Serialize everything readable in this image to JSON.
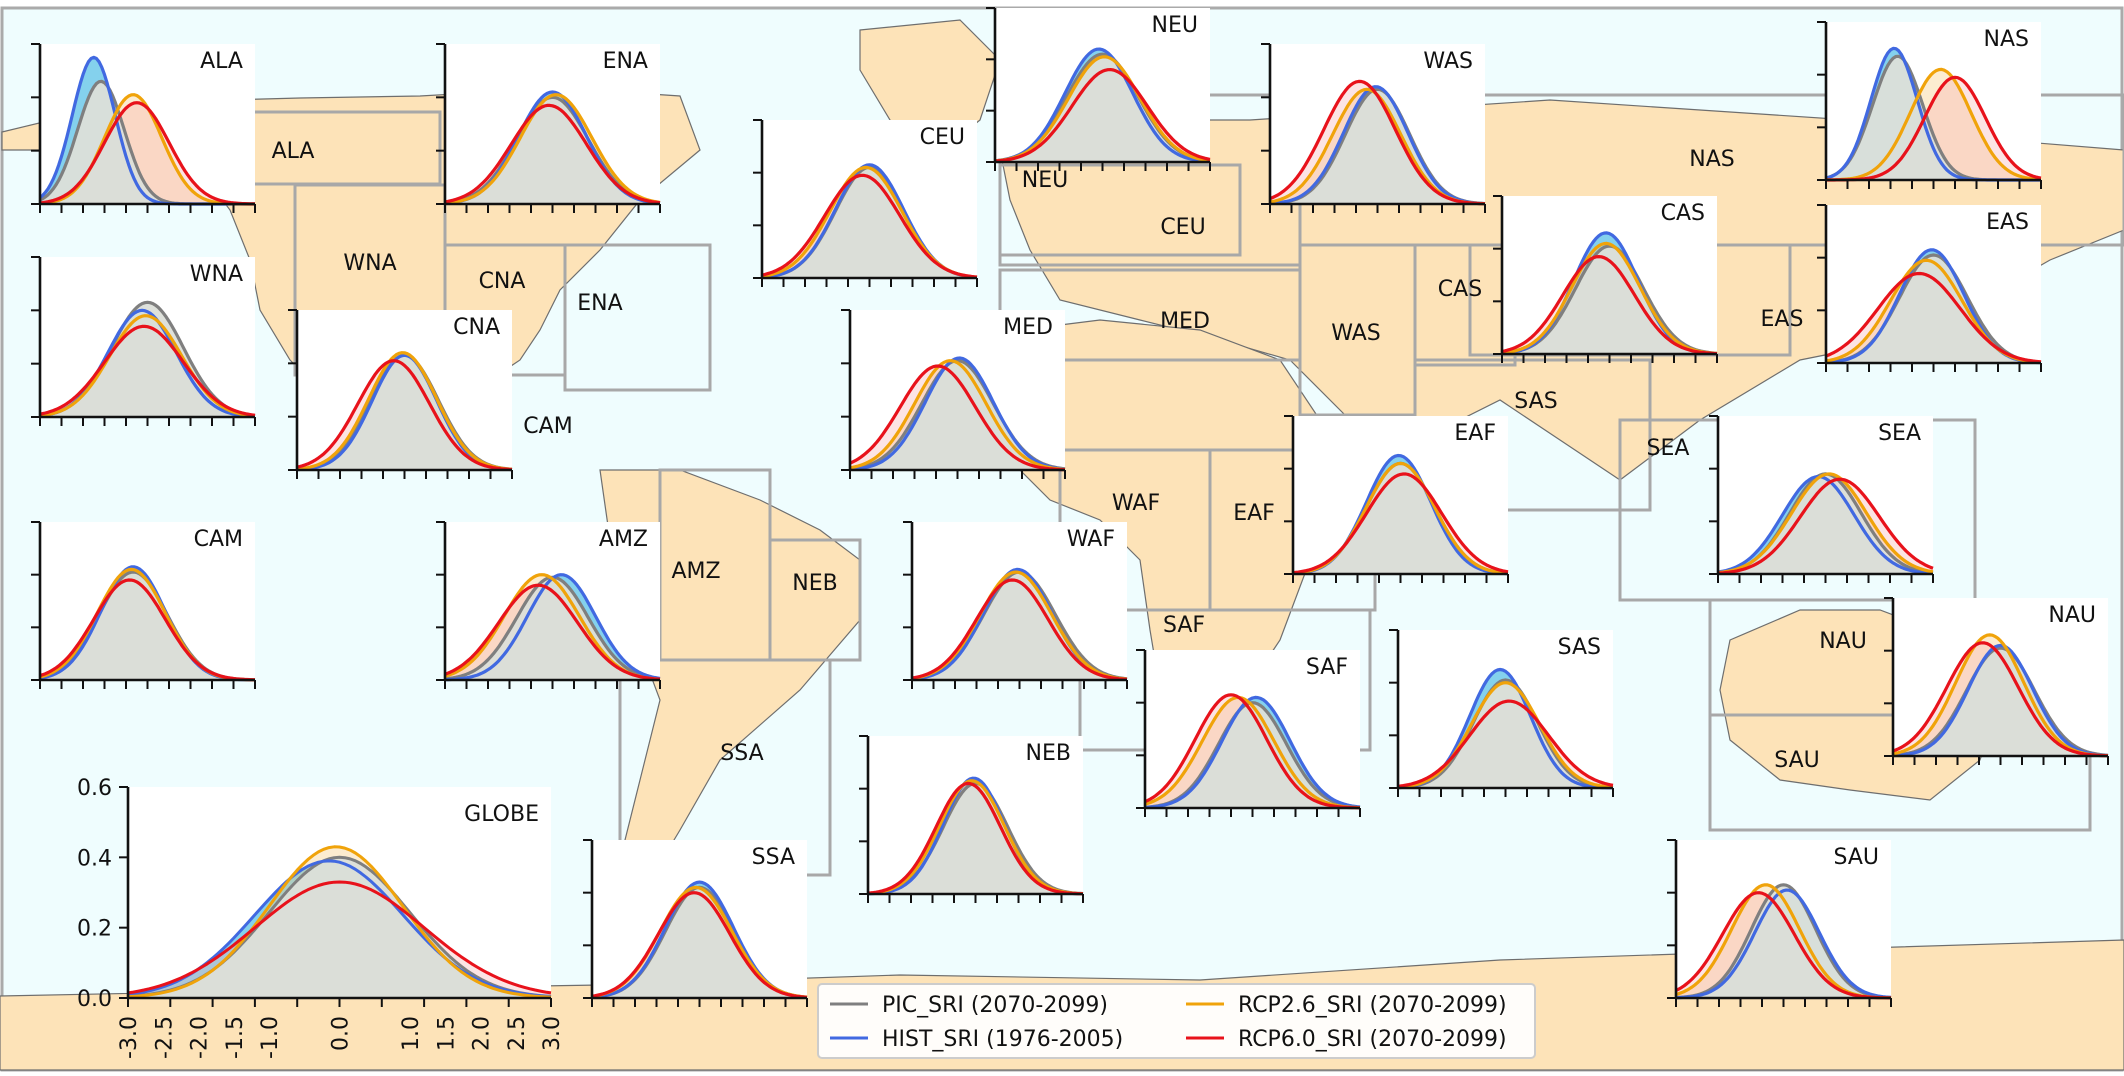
{
  "colors": {
    "ocean": "#effdfe",
    "land": "#fde3b8",
    "coast": "#6e6e6e",
    "region_border": "#a8a8a8",
    "pic": "#7f7f7f",
    "hist": "#4169e1",
    "rcp26": "#f0a30a",
    "rcp60": "#e8121b",
    "fill_grey": "#dcdfd9",
    "fill_blue": "#5bc2e7",
    "fill_orange": "#f7c977",
    "fill_red": "#f5b3b3"
  },
  "map_labels": [
    "ALA",
    "WNA",
    "CNA",
    "ENA",
    "CAM",
    "AMZ",
    "NEB",
    "SSA",
    "NEU",
    "CEU",
    "MED",
    "WAF",
    "EAF",
    "SAF",
    "WAS",
    "CAS",
    "NAS",
    "EAS",
    "SAS",
    "SEA",
    "NAU",
    "SAU"
  ],
  "legend": [
    {
      "key": "pic",
      "label": "PIC_SRI (2070-2099)"
    },
    {
      "key": "rcp26",
      "label": "RCP2.6_SRI (2070-2099)"
    },
    {
      "key": "hist",
      "label": "HIST_SRI (1976-2005)"
    },
    {
      "key": "rcp60",
      "label": "RCP6.0_SRI (2070-2099)"
    }
  ],
  "chart_data": {
    "type": "area",
    "description_units": "probability density of SRI",
    "x_range": [
      -3.0,
      3.0
    ],
    "y_range": [
      0.0,
      0.6
    ],
    "globe_axes": {
      "xticks": [
        "-3.0",
        "-2.5",
        "-2.0",
        "-1.5",
        "-1.0",
        "0.0",
        "1.0",
        "1.5",
        "2.0",
        "2.5",
        "3.0"
      ],
      "yticks": [
        "0.0",
        "0.2",
        "0.4",
        "0.6"
      ]
    },
    "series_names": {
      "pic": "PIC_SRI (2070-2099)",
      "hist": "HIST_SRI (1976-2005)",
      "rcp26": "RCP2.6_SRI (2070-2099)",
      "rcp60": "RCP6.0_SRI (2070-2099)"
    },
    "panels": [
      {
        "name": "ALA",
        "series": {
          "pic": {
            "mu": -1.3,
            "sd": 0.65,
            "peak": 0.46
          },
          "hist": {
            "mu": -1.5,
            "sd": 0.6,
            "peak": 0.55
          },
          "rcp26": {
            "mu": -0.4,
            "sd": 0.8,
            "peak": 0.41
          },
          "rcp60": {
            "mu": -0.3,
            "sd": 0.9,
            "peak": 0.38
          }
        }
      },
      {
        "name": "ENA",
        "series": {
          "pic": {
            "mu": 0,
            "sd": 1,
            "peak": 0.4
          },
          "hist": {
            "mu": 0,
            "sd": 0.95,
            "peak": 0.42
          },
          "rcp26": {
            "mu": 0.1,
            "sd": 1,
            "peak": 0.41
          },
          "rcp60": {
            "mu": -0.1,
            "sd": 1.05,
            "peak": 0.37
          }
        }
      },
      {
        "name": "NEU",
        "series": {
          "pic": {
            "mu": 0,
            "sd": 1,
            "peak": 0.42
          },
          "hist": {
            "mu": -0.1,
            "sd": 0.95,
            "peak": 0.44
          },
          "rcp26": {
            "mu": 0.05,
            "sd": 1,
            "peak": 0.41
          },
          "rcp60": {
            "mu": 0.2,
            "sd": 1.05,
            "peak": 0.36
          }
        }
      },
      {
        "name": "WAS",
        "series": {
          "pic": {
            "mu": 0,
            "sd": 0.9,
            "peak": 0.43
          },
          "hist": {
            "mu": -0.05,
            "sd": 0.9,
            "peak": 0.44
          },
          "rcp26": {
            "mu": -0.3,
            "sd": 0.95,
            "peak": 0.43
          },
          "rcp60": {
            "mu": -0.5,
            "sd": 1,
            "peak": 0.46
          }
        }
      },
      {
        "name": "NAS",
        "series": {
          "pic": {
            "mu": -1.0,
            "sd": 0.7,
            "peak": 0.47
          },
          "hist": {
            "mu": -1.1,
            "sd": 0.65,
            "peak": 0.5
          },
          "rcp26": {
            "mu": 0.2,
            "sd": 0.85,
            "peak": 0.42
          },
          "rcp60": {
            "mu": 0.6,
            "sd": 0.85,
            "peak": 0.39
          }
        }
      },
      {
        "name": "CEU",
        "series": {
          "pic": {
            "mu": 0,
            "sd": 0.95,
            "peak": 0.42
          },
          "hist": {
            "mu": 0,
            "sd": 0.95,
            "peak": 0.43
          },
          "rcp26": {
            "mu": -0.1,
            "sd": 1,
            "peak": 0.42
          },
          "rcp60": {
            "mu": -0.2,
            "sd": 1.05,
            "peak": 0.39
          }
        }
      },
      {
        "name": "WNA",
        "series": {
          "pic": {
            "mu": 0,
            "sd": 1,
            "peak": 0.43
          },
          "hist": {
            "mu": -0.15,
            "sd": 0.95,
            "peak": 0.4
          },
          "rcp26": {
            "mu": -0.05,
            "sd": 1,
            "peak": 0.38
          },
          "rcp60": {
            "mu": -0.1,
            "sd": 1.1,
            "peak": 0.34
          }
        }
      },
      {
        "name": "CNA",
        "series": {
          "pic": {
            "mu": 0,
            "sd": 0.95,
            "peak": 0.43
          },
          "hist": {
            "mu": 0,
            "sd": 0.9,
            "peak": 0.43
          },
          "rcp26": {
            "mu": -0.05,
            "sd": 0.95,
            "peak": 0.44
          },
          "rcp60": {
            "mu": -0.3,
            "sd": 1,
            "peak": 0.41
          }
        }
      },
      {
        "name": "MED",
        "series": {
          "pic": {
            "mu": 0,
            "sd": 1,
            "peak": 0.41
          },
          "hist": {
            "mu": 0.05,
            "sd": 0.95,
            "peak": 0.42
          },
          "rcp26": {
            "mu": -0.2,
            "sd": 1,
            "peak": 0.41
          },
          "rcp60": {
            "mu": -0.55,
            "sd": 1.05,
            "peak": 0.39
          }
        }
      },
      {
        "name": "CAS",
        "series": {
          "pic": {
            "mu": 0,
            "sd": 0.95,
            "peak": 0.41
          },
          "hist": {
            "mu": -0.1,
            "sd": 0.9,
            "peak": 0.46
          },
          "rcp26": {
            "mu": -0.1,
            "sd": 0.95,
            "peak": 0.42
          },
          "rcp60": {
            "mu": -0.3,
            "sd": 1,
            "peak": 0.37
          }
        }
      },
      {
        "name": "EAS",
        "series": {
          "pic": {
            "mu": 0,
            "sd": 0.95,
            "peak": 0.41
          },
          "hist": {
            "mu": -0.05,
            "sd": 0.9,
            "peak": 0.43
          },
          "rcp26": {
            "mu": -0.2,
            "sd": 1,
            "peak": 0.39
          },
          "rcp60": {
            "mu": -0.4,
            "sd": 1.15,
            "peak": 0.34
          }
        }
      },
      {
        "name": "EAF",
        "series": {
          "pic": {
            "mu": 0,
            "sd": 0.95,
            "peak": 0.42
          },
          "hist": {
            "mu": -0.05,
            "sd": 0.9,
            "peak": 0.45
          },
          "rcp26": {
            "mu": 0,
            "sd": 0.95,
            "peak": 0.42
          },
          "rcp60": {
            "mu": 0.1,
            "sd": 1.05,
            "peak": 0.38
          }
        }
      },
      {
        "name": "SEA",
        "series": {
          "pic": {
            "mu": 0,
            "sd": 1,
            "peak": 0.38
          },
          "hist": {
            "mu": -0.2,
            "sd": 1,
            "peak": 0.37
          },
          "rcp26": {
            "mu": 0.1,
            "sd": 1.05,
            "peak": 0.38
          },
          "rcp60": {
            "mu": 0.4,
            "sd": 1.1,
            "peak": 0.36
          }
        }
      },
      {
        "name": "CAM",
        "series": {
          "pic": {
            "mu": -0.4,
            "sd": 0.95,
            "peak": 0.41
          },
          "hist": {
            "mu": -0.4,
            "sd": 0.9,
            "peak": 0.43
          },
          "rcp26": {
            "mu": -0.45,
            "sd": 0.95,
            "peak": 0.42
          },
          "rcp60": {
            "mu": -0.5,
            "sd": 1,
            "peak": 0.38
          }
        }
      },
      {
        "name": "AMZ",
        "series": {
          "pic": {
            "mu": 0,
            "sd": 1,
            "peak": 0.39
          },
          "hist": {
            "mu": 0.25,
            "sd": 0.95,
            "peak": 0.4
          },
          "rcp26": {
            "mu": -0.3,
            "sd": 1.05,
            "peak": 0.4
          },
          "rcp60": {
            "mu": -0.4,
            "sd": 1.1,
            "peak": 0.36
          }
        }
      },
      {
        "name": "WAF",
        "series": {
          "pic": {
            "mu": 0,
            "sd": 1,
            "peak": 0.41
          },
          "hist": {
            "mu": -0.05,
            "sd": 0.95,
            "peak": 0.42
          },
          "rcp26": {
            "mu": -0.1,
            "sd": 1,
            "peak": 0.41
          },
          "rcp60": {
            "mu": -0.2,
            "sd": 1,
            "peak": 0.38
          }
        }
      },
      {
        "name": "SAF",
        "series": {
          "pic": {
            "mu": 0,
            "sd": 0.95,
            "peak": 0.4
          },
          "hist": {
            "mu": 0.1,
            "sd": 0.95,
            "peak": 0.42
          },
          "rcp26": {
            "mu": -0.4,
            "sd": 1,
            "peak": 0.42
          },
          "rcp60": {
            "mu": -0.6,
            "sd": 1,
            "peak": 0.43
          }
        }
      },
      {
        "name": "SAS",
        "series": {
          "pic": {
            "mu": 0,
            "sd": 0.9,
            "peak": 0.41
          },
          "hist": {
            "mu": -0.15,
            "sd": 0.85,
            "peak": 0.45
          },
          "rcp26": {
            "mu": 0,
            "sd": 0.95,
            "peak": 0.4
          },
          "rcp60": {
            "mu": 0.1,
            "sd": 1.1,
            "peak": 0.33
          }
        }
      },
      {
        "name": "NAU",
        "series": {
          "pic": {
            "mu": 0,
            "sd": 0.95,
            "peak": 0.41
          },
          "hist": {
            "mu": 0,
            "sd": 0.9,
            "peak": 0.42
          },
          "rcp26": {
            "mu": -0.3,
            "sd": 0.95,
            "peak": 0.46
          },
          "rcp60": {
            "mu": -0.5,
            "sd": 1,
            "peak": 0.43
          }
        }
      },
      {
        "name": "SAU",
        "series": {
          "pic": {
            "mu": 0,
            "sd": 0.9,
            "peak": 0.43
          },
          "hist": {
            "mu": 0.1,
            "sd": 0.9,
            "peak": 0.41
          },
          "rcp26": {
            "mu": -0.5,
            "sd": 0.95,
            "peak": 0.43
          },
          "rcp60": {
            "mu": -0.7,
            "sd": 1,
            "peak": 0.4
          }
        }
      },
      {
        "name": "NEB",
        "series": {
          "pic": {
            "mu": 0,
            "sd": 0.9,
            "peak": 0.42
          },
          "hist": {
            "mu": -0.05,
            "sd": 0.85,
            "peak": 0.44
          },
          "rcp26": {
            "mu": -0.1,
            "sd": 0.9,
            "peak": 0.43
          },
          "rcp60": {
            "mu": -0.2,
            "sd": 0.9,
            "peak": 0.42
          }
        }
      },
      {
        "name": "SSA",
        "series": {
          "pic": {
            "mu": 0,
            "sd": 0.95,
            "peak": 0.42
          },
          "hist": {
            "mu": 0,
            "sd": 0.95,
            "peak": 0.44
          },
          "rcp26": {
            "mu": -0.1,
            "sd": 1,
            "peak": 0.42
          },
          "rcp60": {
            "mu": -0.15,
            "sd": 1,
            "peak": 0.4
          }
        }
      },
      {
        "name": "GLOBE",
        "series": {
          "pic": {
            "mu": 0,
            "sd": 1,
            "peak": 0.4
          },
          "hist": {
            "mu": -0.15,
            "sd": 1.05,
            "peak": 0.39
          },
          "rcp26": {
            "mu": -0.05,
            "sd": 0.95,
            "peak": 0.43
          },
          "rcp60": {
            "mu": 0,
            "sd": 1.2,
            "peak": 0.33
          }
        }
      }
    ]
  }
}
